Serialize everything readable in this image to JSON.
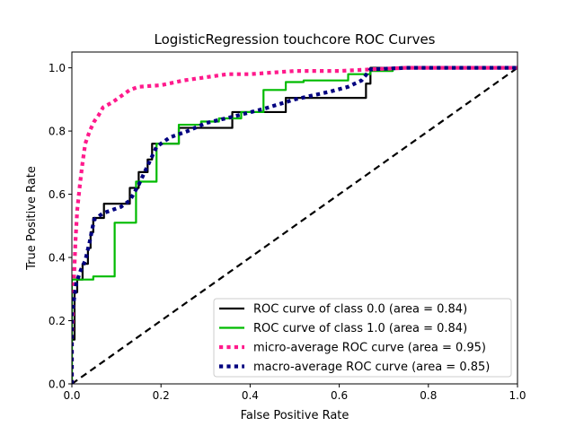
{
  "chart_data": {
    "type": "line",
    "title": "LogisticRegression touchcore ROC Curves",
    "xlabel": "False Positive Rate",
    "ylabel": "True Positive Rate",
    "xlim": [
      0.0,
      1.0
    ],
    "ylim": [
      0.0,
      1.05
    ],
    "xticks": [
      "0.0",
      "0.2",
      "0.4",
      "0.6",
      "0.8",
      "1.0"
    ],
    "yticks": [
      "0.0",
      "0.2",
      "0.4",
      "0.6",
      "0.8",
      "1.0"
    ],
    "grid": false,
    "legend_position": "lower-right",
    "series": [
      {
        "name": "ROC curve of class 0.0 (area = 0.84)",
        "color": "#000000",
        "dash": "solid",
        "x": [
          0.0,
          0.0,
          0.006,
          0.006,
          0.012,
          0.012,
          0.024,
          0.024,
          0.036,
          0.036,
          0.042,
          0.042,
          0.048,
          0.048,
          0.072,
          0.072,
          0.108,
          0.108,
          0.13,
          0.13,
          0.15,
          0.15,
          0.17,
          0.17,
          0.18,
          0.18,
          0.24,
          0.24,
          0.36,
          0.36,
          0.48,
          0.48,
          0.66,
          0.66,
          0.67,
          0.67,
          1.0
        ],
        "y": [
          0.0,
          0.14,
          0.14,
          0.29,
          0.29,
          0.33,
          0.33,
          0.38,
          0.38,
          0.43,
          0.43,
          0.48,
          0.48,
          0.525,
          0.525,
          0.57,
          0.57,
          0.57,
          0.57,
          0.62,
          0.62,
          0.67,
          0.67,
          0.71,
          0.71,
          0.76,
          0.76,
          0.81,
          0.81,
          0.86,
          0.86,
          0.905,
          0.905,
          0.95,
          0.95,
          1.0,
          1.0
        ]
      },
      {
        "name": "ROC curve of class 1.0 (area = 0.84)",
        "color": "#00bb00",
        "dash": "solid",
        "x": [
          0.0,
          0.0,
          0.048,
          0.048,
          0.096,
          0.096,
          0.144,
          0.144,
          0.19,
          0.19,
          0.24,
          0.24,
          0.29,
          0.29,
          0.33,
          0.33,
          0.38,
          0.38,
          0.43,
          0.43,
          0.48,
          0.48,
          0.52,
          0.52,
          0.62,
          0.62,
          0.67,
          0.67,
          0.72,
          0.72,
          1.0
        ],
        "y": [
          0.0,
          0.33,
          0.33,
          0.34,
          0.34,
          0.51,
          0.51,
          0.64,
          0.64,
          0.76,
          0.76,
          0.82,
          0.82,
          0.83,
          0.83,
          0.84,
          0.84,
          0.86,
          0.86,
          0.93,
          0.93,
          0.955,
          0.955,
          0.96,
          0.96,
          0.98,
          0.98,
          0.99,
          0.99,
          1.0,
          1.0
        ]
      },
      {
        "name": "micro-average ROC curve (area = 0.95)",
        "color": "#ff1a8c",
        "dash": "dotted",
        "x": [
          0.0,
          0.0,
          0.005,
          0.008,
          0.012,
          0.018,
          0.024,
          0.03,
          0.04,
          0.05,
          0.06,
          0.07,
          0.09,
          0.11,
          0.13,
          0.15,
          0.2,
          0.25,
          0.3,
          0.35,
          0.4,
          0.5,
          0.6,
          0.67,
          0.75,
          0.85,
          1.0
        ],
        "y": [
          0.0,
          0.14,
          0.34,
          0.45,
          0.55,
          0.63,
          0.7,
          0.76,
          0.8,
          0.83,
          0.85,
          0.875,
          0.89,
          0.91,
          0.93,
          0.94,
          0.945,
          0.96,
          0.97,
          0.98,
          0.98,
          0.99,
          0.99,
          0.995,
          1.0,
          1.0,
          1.0
        ]
      },
      {
        "name": "macro-average ROC curve (area = 0.85)",
        "color": "#00007f",
        "dash": "dotted",
        "x": [
          0.0,
          0.0,
          0.01,
          0.02,
          0.03,
          0.04,
          0.05,
          0.07,
          0.09,
          0.11,
          0.13,
          0.15,
          0.17,
          0.19,
          0.22,
          0.26,
          0.3,
          0.36,
          0.43,
          0.5,
          0.58,
          0.62,
          0.65,
          0.67,
          0.75,
          0.85,
          1.0
        ],
        "y": [
          0.0,
          0.22,
          0.32,
          0.36,
          0.39,
          0.45,
          0.52,
          0.54,
          0.55,
          0.56,
          0.58,
          0.63,
          0.69,
          0.75,
          0.78,
          0.8,
          0.825,
          0.845,
          0.87,
          0.9,
          0.925,
          0.94,
          0.96,
          0.995,
          1.0,
          1.0,
          1.0
        ]
      },
      {
        "name": "",
        "color": "#000000",
        "dash": "dashed",
        "x": [
          0.0,
          1.0
        ],
        "y": [
          0.0,
          1.0
        ]
      }
    ]
  }
}
